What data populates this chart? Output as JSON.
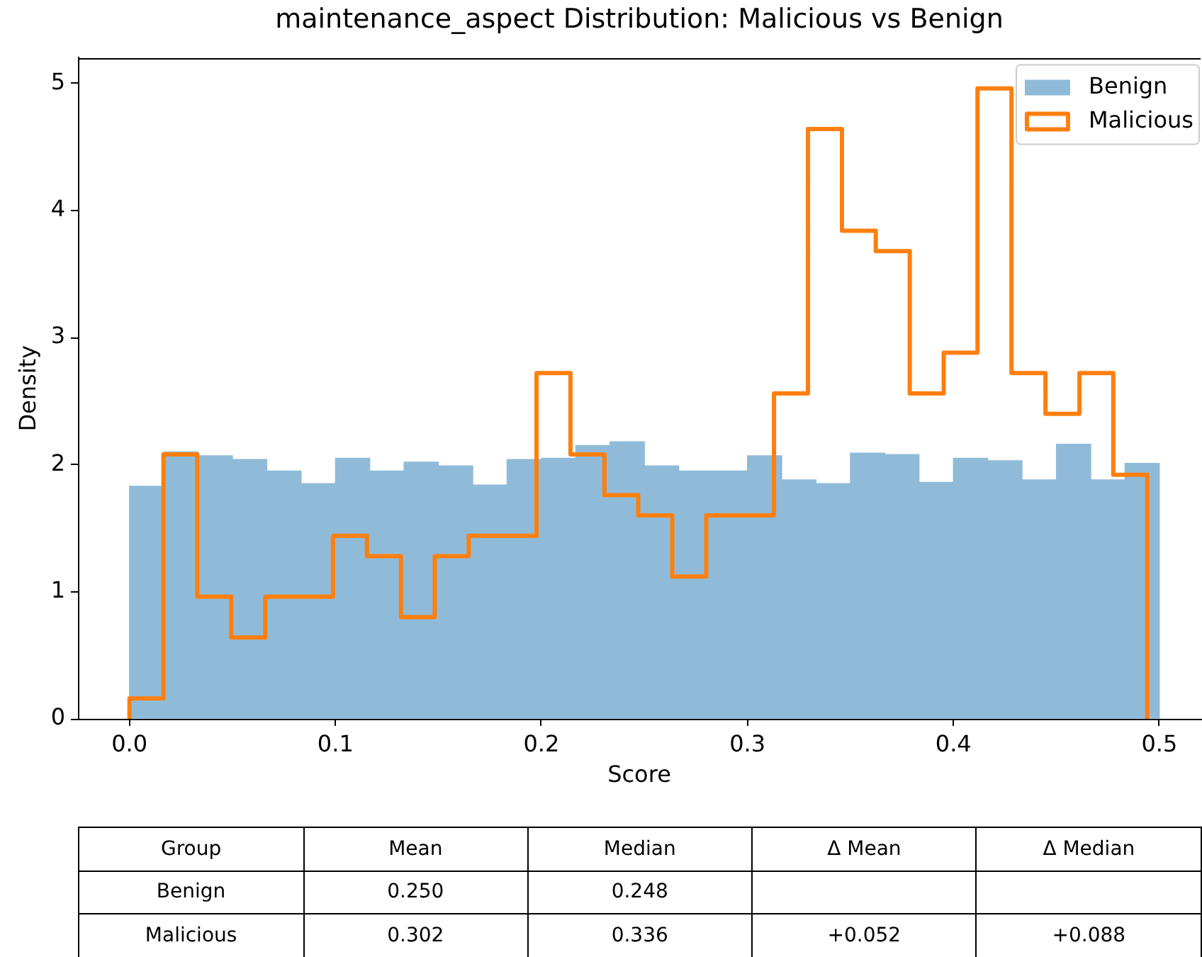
{
  "chart_data": [
    {
      "type": "histogram",
      "title": "maintenance_aspect Distribution: Malicious vs Benign",
      "xlabel": "Score",
      "ylabel": "Density",
      "xlim": [
        -0.025,
        0.52
      ],
      "ylim": [
        0,
        5.2
      ],
      "xticks": [
        {
          "value": 0,
          "label": "0.0"
        },
        0.1,
        0.2,
        0.3,
        0.4,
        0.5
      ],
      "yticks": [
        0,
        1,
        2,
        3,
        4,
        5
      ],
      "legend": "top right",
      "bins": [
        0,
        0.0167,
        0.0333,
        0.05,
        0.0667,
        0.0833,
        0.1,
        0.1167,
        0.1333,
        0.15,
        0.1667,
        0.1833,
        0.2,
        0.2167,
        0.2333,
        0.25,
        0.2667,
        0.2833,
        0.3,
        0.3167,
        0.3333,
        0.35,
        0.3667,
        0.3833,
        0.4,
        0.4167,
        0.4333,
        0.45,
        0.4667,
        0.4833,
        0.5
      ],
      "series": [
        {
          "name": "Benign",
          "color": "#8fbbd9",
          "values": [
            1.83,
            2.1,
            2.07,
            2.04,
            1.95,
            1.85,
            2.05,
            1.95,
            2.02,
            1.99,
            1.84,
            2.04,
            2.05,
            2.15,
            2.18,
            1.99,
            1.95,
            1.95,
            2.07,
            1.88,
            1.85,
            2.09,
            2.08,
            1.86,
            2.05,
            2.03,
            1.88,
            2.16,
            1.88,
            2.01
          ]
        },
        {
          "name": "Malicious",
          "type": "line",
          "color": "#ff7f0e",
          "x": [
            0,
            0,
            0.0165,
            0.0165,
            0.0329,
            0.0329,
            0.0494,
            0.0494,
            0.0659,
            0.0659,
            0.0988,
            0.0988,
            0.1153,
            0.1153,
            0.1318,
            0.1318,
            0.1482,
            0.1482,
            0.1647,
            0.1647,
            0.1976,
            0.1976,
            0.2141,
            0.2141,
            0.2306,
            0.2306,
            0.247,
            0.247,
            0.2635,
            0.2635,
            0.28,
            0.28,
            0.3129,
            0.3129,
            0.3294,
            0.3294,
            0.3459,
            0.3459,
            0.3623,
            0.3623,
            0.3788,
            0.3788,
            0.3953,
            0.3953,
            0.4117,
            0.4117,
            0.4282,
            0.4282,
            0.4447,
            0.4447,
            0.4612,
            0.4612,
            0.4776,
            0.4776,
            0.4941,
            0.4941
          ],
          "values": [
            0,
            0.16,
            0.16,
            2.08,
            2.08,
            0.96,
            0.96,
            0.64,
            0.64,
            0.96,
            0.96,
            1.44,
            1.44,
            1.28,
            1.28,
            0.8,
            0.8,
            1.28,
            1.28,
            1.44,
            1.44,
            2.72,
            2.72,
            2.08,
            2.08,
            1.76,
            1.76,
            1.6,
            1.6,
            1.12,
            1.12,
            1.6,
            1.6,
            2.56,
            2.56,
            4.64,
            4.64,
            3.84,
            3.84,
            3.68,
            3.68,
            2.56,
            2.56,
            2.88,
            2.88,
            4.96,
            4.96,
            2.72,
            2.72,
            2.4,
            2.4,
            2.72,
            2.72,
            1.92,
            1.92,
            0
          ]
        }
      ]
    },
    {
      "type": "other",
      "legend_title": "Group",
      "categories": [
        "Mean",
        "Median",
        "Δ Mean",
        "Δ Median"
      ],
      "series": [
        {
          "name": "Benign",
          "values": [
            0.25,
            0.248,
            null,
            null
          ],
          "value_labels": [
            "0.250",
            "0.248",
            null,
            null
          ]
        },
        {
          "name": "Malicious",
          "values": [
            0.302,
            0.336,
            0.052,
            0.088
          ],
          "value_labels": [
            "0.302",
            "0.336",
            "+0.052",
            "+0.088"
          ]
        }
      ]
    }
  ]
}
